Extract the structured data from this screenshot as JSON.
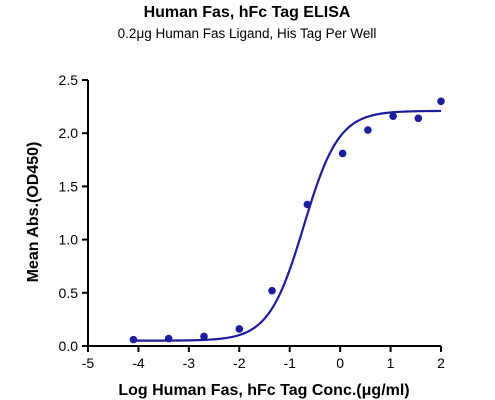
{
  "chart_data": {
    "type": "scatter",
    "title": "Human Fas, hFc Tag ELISA",
    "subtitle": "0.2μg Human Fas Ligand, His Tag Per Well",
    "xlabel": "Log Human Fas, hFc Tag Conc.(μg/ml)",
    "ylabel": "Mean Abs.(OD450)",
    "xlim": [
      -5,
      2
    ],
    "ylim": [
      0,
      2.5
    ],
    "xticks": [
      "-5",
      "-4",
      "-3",
      "-2",
      "-1",
      "0",
      "1",
      "2"
    ],
    "yticks": [
      "0.0",
      "0.5",
      "1.0",
      "1.5",
      "2.0",
      "2.5"
    ],
    "grid": false,
    "legend": "none",
    "series": [
      {
        "color": "#1c1c9c",
        "x": [
          -4.1,
          -3.4,
          -2.7,
          -2.0,
          -1.35,
          -0.65,
          0.05,
          0.55,
          1.05,
          1.55,
          2.0
        ],
        "y": [
          0.06,
          0.07,
          0.09,
          0.16,
          0.52,
          1.33,
          1.81,
          2.03,
          2.16,
          2.14,
          2.3
        ]
      }
    ],
    "fit": {
      "model": "4PL",
      "color": "#1c1c9c",
      "bottom": 0.05,
      "top": 2.21,
      "log_ec50": -0.72,
      "hill": 1.25,
      "x_range": [
        -4.1,
        2.0
      ]
    }
  }
}
